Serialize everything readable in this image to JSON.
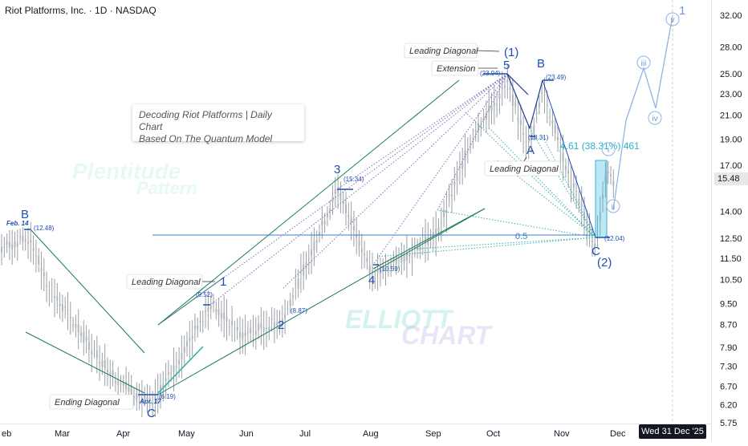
{
  "header": {
    "title": "Riot Platforms, Inc. · 1D · NASDAQ"
  },
  "note_box": {
    "line1": "Decoding Riot Platforms | Daily Chart",
    "line2": "Based On The Quantum Model"
  },
  "watermarks": {
    "w1": "Plentitude",
    "w2": "Pattern",
    "w3": "ELLIOTT",
    "w4": "CHART"
  },
  "date_tag": "Wed 31 Dec '25",
  "price_tag": "15.48",
  "chart_data": {
    "type": "candlestick",
    "title": "Riot Platforms, Inc. · 1D · NASDAQ",
    "ylim": [
      5.5,
      33
    ],
    "log_scale": true,
    "y_ticks": [
      32.0,
      28.0,
      25.0,
      23.0,
      21.0,
      19.0,
      17.0,
      15.48,
      14.0,
      12.5,
      11.5,
      10.5,
      9.5,
      8.7,
      7.9,
      7.3,
      6.7,
      6.2,
      5.75
    ],
    "x_labels": [
      "eb",
      "Mar",
      "Apr",
      "May",
      "Jun",
      "Jul",
      "Aug",
      "Sep",
      "Oct",
      "Nov",
      "Dec"
    ],
    "points": [
      {
        "label": "B",
        "date": "Feb. 14",
        "value": 12.48
      },
      {
        "label": "C",
        "date": "Apr. 17",
        "value": 6.19
      },
      {
        "label": "1",
        "value": 9.52
      },
      {
        "label": "2",
        "value": 8.87
      },
      {
        "label": "3",
        "value": 15.34
      },
      {
        "label": "4",
        "value": 10.59
      },
      {
        "label": "5",
        "value": 23.94
      },
      {
        "label": "A",
        "value": 18.31
      },
      {
        "label": "B",
        "value": 23.49
      },
      {
        "label": "C",
        "value": 12.04
      }
    ],
    "annotations": {
      "ending_diagonal": "Ending Diagonal",
      "leading_diagonal_1": "Leading Diagonal",
      "leading_diagonal_2": "Leading Diagonal",
      "leading_diagonal_top": "Leading Diagonal",
      "extension": "Extension",
      "wave_1_paren": "(1)",
      "wave_2_paren": "(2)",
      "fib_05": "0.5",
      "measure": "4.61 (38.31%) 461",
      "proj_i": "i",
      "proj_ii": "ii",
      "proj_iii": "iii",
      "proj_iv": "iv",
      "proj_v": "v",
      "proj_1": "1"
    },
    "price_labels": {
      "b": "(12.48)",
      "c": "(6.19)",
      "w1": "(9.52)",
      "w2": "(8.87)",
      "w3": "(15.34)",
      "w4": "(10.59)",
      "w5": "(23.94)",
      "a": "(18.31)",
      "bb": "(23.49)",
      "cc": "(12.04)"
    },
    "date_labels": {
      "feb": "Feb. 14",
      "apr": "Apr. 17"
    },
    "current_price": 15.48
  }
}
